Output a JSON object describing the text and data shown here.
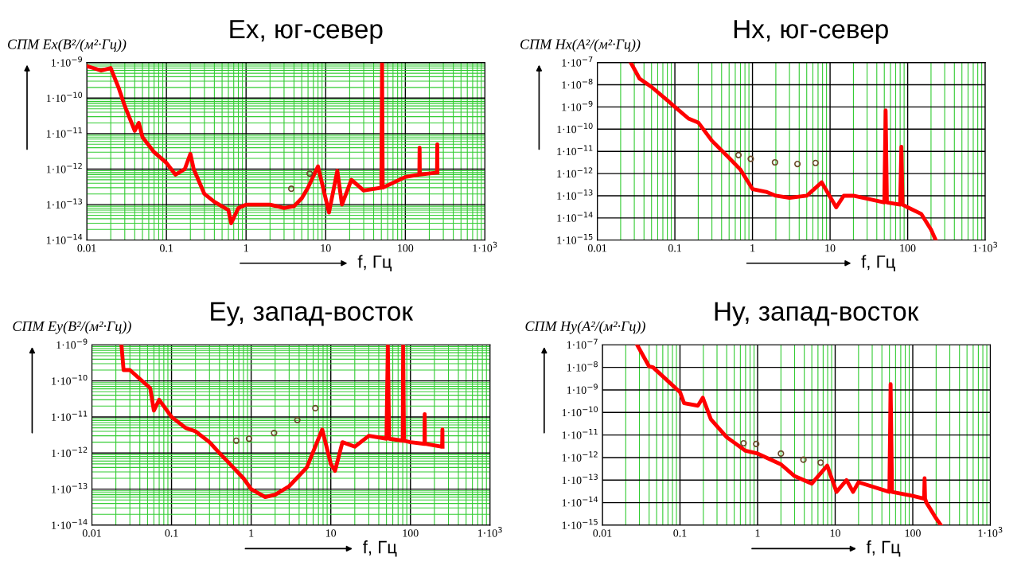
{
  "chart_data": [
    {
      "type": "line",
      "title": "Ex, юг-север",
      "xlabel": "f, Гц",
      "ylabel": "СПМ Ex(В²/(м²·Гц))",
      "log": "xy",
      "grid": true,
      "xlim": [
        0.01,
        1000
      ],
      "ylim": [
        1e-14,
        1e-09
      ],
      "xticks": [
        0.01,
        {
          "value": 0.02,
          "label": null
        },
        {
          "value": 0.03,
          "label": null
        },
        {
          "value": 0.04,
          "label": null
        },
        {
          "value": 0.05,
          "label": null
        },
        {
          "value": 0.06,
          "label": null
        },
        {
          "value": 0.07,
          "label": null
        },
        {
          "value": 0.08,
          "label": null
        },
        {
          "value": 0.09,
          "label": null
        },
        0.1,
        {
          "value": 0.2,
          "label": null
        },
        {
          "value": 0.3,
          "label": null
        },
        {
          "value": 0.4,
          "label": null
        },
        {
          "value": 0.5,
          "label": null
        },
        {
          "value": 0.6,
          "label": null
        },
        {
          "value": 0.7,
          "label": null
        },
        {
          "value": 0.8,
          "label": null
        },
        {
          "value": 0.9,
          "label": null
        },
        1,
        {
          "value": 2,
          "label": null
        },
        {
          "value": 3,
          "label": null
        },
        {
          "value": 4,
          "label": null
        },
        {
          "value": 5,
          "label": null
        },
        {
          "value": 6,
          "label": null
        },
        {
          "value": 7,
          "label": null
        },
        {
          "value": 8,
          "label": null
        },
        {
          "value": 9,
          "label": null
        },
        10,
        {
          "value": 20,
          "label": null
        },
        {
          "value": 30,
          "label": null
        },
        {
          "value": 40,
          "label": null
        },
        {
          "value": 50,
          "label": null
        },
        {
          "value": 60,
          "label": null
        },
        {
          "value": 70,
          "label": null
        },
        {
          "value": 80,
          "label": null
        },
        {
          "value": 90,
          "label": null
        },
        100,
        {
          "value": 200,
          "label": null
        },
        {
          "value": 300,
          "label": null
        },
        {
          "value": 400,
          "label": null
        },
        {
          "value": 500,
          "label": null
        },
        {
          "value": 600,
          "label": null
        },
        {
          "value": 700,
          "label": null
        },
        {
          "value": 800,
          "label": null
        },
        {
          "value": 900,
          "label": null
        },
        {
          "value": 1000,
          "label": "1·10$^{3}$"
        }
      ],
      "yticks": [
        {
          "value": 1e-14,
          "label": "1·10$^{−14}$"
        },
        {
          "value": 2e-14,
          "label": null
        },
        {
          "value": 3e-14,
          "label": null
        },
        {
          "value": 4e-14,
          "label": null
        },
        {
          "value": 5e-14,
          "label": null
        },
        {
          "value": 6e-14,
          "label": null
        },
        {
          "value": 7e-14,
          "label": null
        },
        {
          "value": 8e-14,
          "label": null
        },
        {
          "value": 9e-14,
          "label": null
        },
        {
          "value": 1e-13,
          "label": "1·10$^{−13}$"
        },
        {
          "value": 2e-13,
          "label": null
        },
        {
          "value": 3e-13,
          "label": null
        },
        {
          "value": 4e-13,
          "label": null
        },
        {
          "value": 5e-13,
          "label": null
        },
        {
          "value": 6e-13,
          "label": null
        },
        {
          "value": 7e-13,
          "label": null
        },
        {
          "value": 8e-13,
          "label": null
        },
        {
          "value": 9e-13,
          "label": null
        },
        {
          "value": 1e-12,
          "label": "1·10$^{−12}$"
        },
        {
          "value": 2e-12,
          "label": null
        },
        {
          "value": 3e-12,
          "label": null
        },
        {
          "value": 4e-12,
          "label": null
        },
        {
          "value": 5e-12,
          "label": null
        },
        {
          "value": 6e-12,
          "label": null
        },
        {
          "value": 7e-12,
          "label": null
        },
        {
          "value": 8e-12,
          "label": null
        },
        {
          "value": 9e-12,
          "label": null
        },
        {
          "value": 1e-11,
          "label": "1·10$^{−11}$"
        },
        {
          "value": 2e-11,
          "label": null
        },
        {
          "value": 3e-11,
          "label": null
        },
        {
          "value": 4e-11,
          "label": null
        },
        {
          "value": 5e-11,
          "label": null
        },
        {
          "value": 6e-11,
          "label": null
        },
        {
          "value": 7e-11,
          "label": null
        },
        {
          "value": 8e-11,
          "label": null
        },
        {
          "value": 9e-11,
          "label": null
        },
        {
          "value": 1e-10,
          "label": "1·10$^{−10}$"
        },
        {
          "value": 2e-10,
          "label": null
        },
        {
          "value": 3e-10,
          "label": null
        },
        {
          "value": 4e-10,
          "label": null
        },
        {
          "value": 5e-10,
          "label": null
        },
        {
          "value": 6e-10,
          "label": null
        },
        {
          "value": 7e-10,
          "label": null
        },
        {
          "value": 8e-10,
          "label": null
        },
        {
          "value": 9e-10,
          "label": null
        },
        {
          "value": 1e-09,
          "label": "1·10$^{−9}$"
        }
      ],
      "series": [
        {
          "color": "#ff0000",
          "x": [
            0.01,
            0.015,
            0.02,
            0.025,
            0.03,
            0.04,
            0.045,
            0.05,
            0.07,
            0.1,
            0.13,
            0.17,
            0.2,
            0.22,
            0.3,
            0.4,
            0.6,
            0.65,
            0.8,
            1,
            2,
            3,
            4,
            5,
            6,
            8,
            11,
            14,
            16,
            21,
            30,
            50,
            51,
            52,
            100,
            150,
            151,
            152,
            250,
            252,
            253
          ],
          "values": [
            8e-10,
            6e-10,
            7e-10,
            2e-10,
            6e-11,
            1.2e-11,
            2e-11,
            8e-12,
            3e-12,
            1.5e-12,
            7e-13,
            1e-12,
            2.7e-12,
            1e-12,
            2e-13,
            1.2e-13,
            7e-14,
            3e-14,
            8e-14,
            1e-13,
            1e-13,
            8e-14,
            9e-14,
            1.5e-13,
            3e-13,
            1.2e-12,
            6e-14,
            9e-13,
            1e-13,
            5e-13,
            2.5e-13,
            3e-13,
            1e-09,
            3e-13,
            6e-13,
            7e-13,
            4e-12,
            7e-13,
            8e-13,
            5e-12,
            8e-13
          ]
        },
        {
          "type": "scatter",
          "color": "#6b4a2a",
          "x": [
            3.7,
            6.3
          ],
          "values": [
            2.8e-13,
            7.5e-13
          ]
        }
      ]
    },
    {
      "type": "line",
      "title": "Hx, юг-север",
      "xlabel": "f, Гц",
      "ylabel": "СПМ Hx(А²/(м²·Гц))",
      "log": "xy",
      "grid": true,
      "xlim": [
        0.01,
        1000
      ],
      "ylim": [
        1e-15,
        1e-07
      ],
      "xticks": [
        0.01,
        {
          "value": 0.02,
          "label": null
        },
        {
          "value": 0.03,
          "label": null
        },
        {
          "value": 0.04,
          "label": null
        },
        {
          "value": 0.05,
          "label": null
        },
        {
          "value": 0.06,
          "label": null
        },
        {
          "value": 0.07,
          "label": null
        },
        {
          "value": 0.08,
          "label": null
        },
        {
          "value": 0.09,
          "label": null
        },
        0.1,
        {
          "value": 0.2,
          "label": null
        },
        {
          "value": 0.3,
          "label": null
        },
        {
          "value": 0.4,
          "label": null
        },
        {
          "value": 0.5,
          "label": null
        },
        {
          "value": 0.6,
          "label": null
        },
        {
          "value": 0.7,
          "label": null
        },
        {
          "value": 0.8,
          "label": null
        },
        {
          "value": 0.9,
          "label": null
        },
        1,
        {
          "value": 2,
          "label": null
        },
        {
          "value": 3,
          "label": null
        },
        {
          "value": 4,
          "label": null
        },
        {
          "value": 5,
          "label": null
        },
        {
          "value": 6,
          "label": null
        },
        {
          "value": 7,
          "label": null
        },
        {
          "value": 8,
          "label": null
        },
        {
          "value": 9,
          "label": null
        },
        10,
        {
          "value": 20,
          "label": null
        },
        {
          "value": 30,
          "label": null
        },
        {
          "value": 40,
          "label": null
        },
        {
          "value": 50,
          "label": null
        },
        {
          "value": 60,
          "label": null
        },
        {
          "value": 70,
          "label": null
        },
        {
          "value": 80,
          "label": null
        },
        {
          "value": 90,
          "label": null
        },
        100,
        {
          "value": 200,
          "label": null
        },
        {
          "value": 300,
          "label": null
        },
        {
          "value": 400,
          "label": null
        },
        {
          "value": 500,
          "label": null
        },
        {
          "value": 600,
          "label": null
        },
        {
          "value": 700,
          "label": null
        },
        {
          "value": 800,
          "label": null
        },
        {
          "value": 900,
          "label": null
        },
        {
          "value": 1000,
          "label": "1·10$^{3}$"
        }
      ],
      "yticks": [
        {
          "value": 1e-15,
          "label": "1·10$^{−15}$"
        },
        {
          "value": 1e-14,
          "label": "1·10$^{−14}$"
        },
        {
          "value": 1e-13,
          "label": "1·10$^{−13}$"
        },
        {
          "value": 1e-12,
          "label": "1·10$^{−12}$"
        },
        {
          "value": 1e-11,
          "label": "1·10$^{−11}$"
        },
        {
          "value": 1e-10,
          "label": "1·10$^{−10}$"
        },
        {
          "value": 1e-09,
          "label": "1·10$^{−9}$"
        },
        {
          "value": 1e-08,
          "label": "1·10$^{−8}$"
        },
        {
          "value": 1e-07,
          "label": "1·10$^{−7}$"
        }
      ],
      "series": [
        {
          "color": "#ff0000",
          "x": [
            0.027,
            0.035,
            0.05,
            0.08,
            0.1,
            0.15,
            0.2,
            0.3,
            0.5,
            0.7,
            1,
            1.5,
            2,
            3,
            5,
            7.8,
            12,
            15,
            20,
            50,
            52,
            54,
            80,
            83,
            86,
            100,
            150,
            200,
            230
          ],
          "values": [
            1e-07,
            1.9e-08,
            8e-09,
            2e-09,
            1e-09,
            3e-10,
            2e-10,
            3e-11,
            5e-12,
            1.5e-12,
            2e-13,
            1.5e-13,
            1e-13,
            8e-14,
            1e-13,
            4e-13,
            3e-14,
            1e-13,
            1e-13,
            5e-14,
            7e-10,
            5e-14,
            4e-14,
            1.6e-11,
            4e-14,
            3e-14,
            1.5e-14,
            3e-15,
            1e-15
          ]
        },
        {
          "type": "scatter",
          "color": "#6b4a2a",
          "x": [
            0.66,
            0.95,
            1.95,
            3.8,
            6.5
          ],
          "values": [
            6.8e-12,
            4.6e-12,
            3.2e-12,
            2.7e-12,
            3e-12
          ]
        }
      ]
    },
    {
      "type": "line",
      "title": "Ey, запад-восток",
      "xlabel": "f, Гц",
      "ylabel": "СПМ Ey(В²/(м²·Гц))",
      "log": "xy",
      "grid": true,
      "xlim": [
        0.01,
        1000
      ],
      "ylim": [
        1e-14,
        1e-09
      ],
      "xticks": [
        0.01,
        {
          "value": 0.02,
          "label": null
        },
        {
          "value": 0.03,
          "label": null
        },
        {
          "value": 0.04,
          "label": null
        },
        {
          "value": 0.05,
          "label": null
        },
        {
          "value": 0.06,
          "label": null
        },
        {
          "value": 0.07,
          "label": null
        },
        {
          "value": 0.08,
          "label": null
        },
        {
          "value": 0.09,
          "label": null
        },
        0.1,
        {
          "value": 0.2,
          "label": null
        },
        {
          "value": 0.3,
          "label": null
        },
        {
          "value": 0.4,
          "label": null
        },
        {
          "value": 0.5,
          "label": null
        },
        {
          "value": 0.6,
          "label": null
        },
        {
          "value": 0.7,
          "label": null
        },
        {
          "value": 0.8,
          "label": null
        },
        {
          "value": 0.9,
          "label": null
        },
        1,
        {
          "value": 2,
          "label": null
        },
        {
          "value": 3,
          "label": null
        },
        {
          "value": 4,
          "label": null
        },
        {
          "value": 5,
          "label": null
        },
        {
          "value": 6,
          "label": null
        },
        {
          "value": 7,
          "label": null
        },
        {
          "value": 8,
          "label": null
        },
        {
          "value": 9,
          "label": null
        },
        10,
        {
          "value": 20,
          "label": null
        },
        {
          "value": 30,
          "label": null
        },
        {
          "value": 40,
          "label": null
        },
        {
          "value": 50,
          "label": null
        },
        {
          "value": 60,
          "label": null
        },
        {
          "value": 70,
          "label": null
        },
        {
          "value": 80,
          "label": null
        },
        {
          "value": 90,
          "label": null
        },
        100,
        {
          "value": 200,
          "label": null
        },
        {
          "value": 300,
          "label": null
        },
        {
          "value": 400,
          "label": null
        },
        {
          "value": 500,
          "label": null
        },
        {
          "value": 600,
          "label": null
        },
        {
          "value": 700,
          "label": null
        },
        {
          "value": 800,
          "label": null
        },
        {
          "value": 900,
          "label": null
        },
        {
          "value": 1000,
          "label": "1·10$^{3}$"
        }
      ],
      "yticks": [
        {
          "value": 1e-14,
          "label": "1·10$^{−14}$"
        },
        {
          "value": 2e-14,
          "label": null
        },
        {
          "value": 3e-14,
          "label": null
        },
        {
          "value": 4e-14,
          "label": null
        },
        {
          "value": 5e-14,
          "label": null
        },
        {
          "value": 6e-14,
          "label": null
        },
        {
          "value": 7e-14,
          "label": null
        },
        {
          "value": 8e-14,
          "label": null
        },
        {
          "value": 9e-14,
          "label": null
        },
        {
          "value": 1e-13,
          "label": "1·10$^{−13}$"
        },
        {
          "value": 2e-13,
          "label": null
        },
        {
          "value": 3e-13,
          "label": null
        },
        {
          "value": 4e-13,
          "label": null
        },
        {
          "value": 5e-13,
          "label": null
        },
        {
          "value": 6e-13,
          "label": null
        },
        {
          "value": 7e-13,
          "label": null
        },
        {
          "value": 8e-13,
          "label": null
        },
        {
          "value": 9e-13,
          "label": null
        },
        {
          "value": 1e-12,
          "label": "1·10$^{−12}$"
        },
        {
          "value": 2e-12,
          "label": null
        },
        {
          "value": 3e-12,
          "label": null
        },
        {
          "value": 4e-12,
          "label": null
        },
        {
          "value": 5e-12,
          "label": null
        },
        {
          "value": 6e-12,
          "label": null
        },
        {
          "value": 7e-12,
          "label": null
        },
        {
          "value": 8e-12,
          "label": null
        },
        {
          "value": 9e-12,
          "label": null
        },
        {
          "value": 1e-11,
          "label": "1·10$^{−11}$"
        },
        {
          "value": 2e-11,
          "label": null
        },
        {
          "value": 3e-11,
          "label": null
        },
        {
          "value": 4e-11,
          "label": null
        },
        {
          "value": 5e-11,
          "label": null
        },
        {
          "value": 6e-11,
          "label": null
        },
        {
          "value": 7e-11,
          "label": null
        },
        {
          "value": 8e-11,
          "label": null
        },
        {
          "value": 9e-11,
          "label": null
        },
        {
          "value": 1e-10,
          "label": "1·10$^{−10}$"
        },
        {
          "value": 2e-10,
          "label": null
        },
        {
          "value": 3e-10,
          "label": null
        },
        {
          "value": 4e-10,
          "label": null
        },
        {
          "value": 5e-10,
          "label": null
        },
        {
          "value": 6e-10,
          "label": null
        },
        {
          "value": 7e-10,
          "label": null
        },
        {
          "value": 8e-10,
          "label": null
        },
        {
          "value": 9e-10,
          "label": null
        },
        {
          "value": 1e-09,
          "label": "1·10$^{−9}$"
        }
      ],
      "series": [
        {
          "color": "#ff0000",
          "x": [
            0.0235,
            0.025,
            0.03,
            0.054,
            0.06,
            0.07,
            0.1,
            0.15,
            0.2,
            0.3,
            0.4,
            0.5,
            0.8,
            1,
            1.5,
            2,
            3,
            5,
            7.8,
            10,
            11.3,
            14,
            20,
            30,
            50,
            52,
            54,
            80,
            81,
            83,
            100,
            150,
            151,
            152,
            250,
            252,
            253
          ],
          "values": [
            1e-09,
            2e-10,
            2e-10,
            6.3e-11,
            1.5e-11,
            3e-11,
            1e-11,
            5e-12,
            4e-12,
            2e-12,
            1e-12,
            6e-13,
            2e-13,
            1e-13,
            6e-14,
            7e-14,
            1.2e-13,
            4e-13,
            4.5e-12,
            5e-13,
            3.2e-13,
            2e-12,
            1.5e-12,
            3e-12,
            2.5e-12,
            1e-09,
            2.5e-12,
            2.2e-12,
            1e-09,
            2.2e-12,
            2e-12,
            1.8e-12,
            1.2e-11,
            1.8e-12,
            1.5e-12,
            4.5e-12,
            1.5e-12
          ]
        },
        {
          "type": "scatter",
          "color": "#6b4a2a",
          "x": [
            0.65,
            0.94,
            1.94,
            3.8,
            6.4
          ],
          "values": [
            2.2e-12,
            2.5e-12,
            3.6e-12,
            8.2e-12,
            1.75e-11
          ]
        }
      ]
    },
    {
      "type": "line",
      "title": "Hy, запад-восток",
      "xlabel": "f, Гц",
      "ylabel": "СПМ Hy(А²/(м²·Гц))",
      "log": "xy",
      "grid": true,
      "xlim": [
        0.01,
        1000
      ],
      "ylim": [
        1e-15,
        1e-07
      ],
      "xticks": [
        0.01,
        {
          "value": 0.02,
          "label": null
        },
        {
          "value": 0.03,
          "label": null
        },
        {
          "value": 0.04,
          "label": null
        },
        {
          "value": 0.05,
          "label": null
        },
        {
          "value": 0.06,
          "label": null
        },
        {
          "value": 0.07,
          "label": null
        },
        {
          "value": 0.08,
          "label": null
        },
        {
          "value": 0.09,
          "label": null
        },
        0.1,
        {
          "value": 0.2,
          "label": null
        },
        {
          "value": 0.3,
          "label": null
        },
        {
          "value": 0.4,
          "label": null
        },
        {
          "value": 0.5,
          "label": null
        },
        {
          "value": 0.6,
          "label": null
        },
        {
          "value": 0.7,
          "label": null
        },
        {
          "value": 0.8,
          "label": null
        },
        {
          "value": 0.9,
          "label": null
        },
        1,
        {
          "value": 2,
          "label": null
        },
        {
          "value": 3,
          "label": null
        },
        {
          "value": 4,
          "label": null
        },
        {
          "value": 5,
          "label": null
        },
        {
          "value": 6,
          "label": null
        },
        {
          "value": 7,
          "label": null
        },
        {
          "value": 8,
          "label": null
        },
        {
          "value": 9,
          "label": null
        },
        10,
        {
          "value": 20,
          "label": null
        },
        {
          "value": 30,
          "label": null
        },
        {
          "value": 40,
          "label": null
        },
        {
          "value": 50,
          "label": null
        },
        {
          "value": 60,
          "label": null
        },
        {
          "value": 70,
          "label": null
        },
        {
          "value": 80,
          "label": null
        },
        {
          "value": 90,
          "label": null
        },
        100,
        {
          "value": 200,
          "label": null
        },
        {
          "value": 300,
          "label": null
        },
        {
          "value": 400,
          "label": null
        },
        {
          "value": 500,
          "label": null
        },
        {
          "value": 600,
          "label": null
        },
        {
          "value": 700,
          "label": null
        },
        {
          "value": 800,
          "label": null
        },
        {
          "value": 900,
          "label": null
        },
        {
          "value": 1000,
          "label": "1·10$^{3}$"
        }
      ],
      "yticks": [
        {
          "value": 1e-15,
          "label": "1·10$^{−15}$"
        },
        {
          "value": 1e-14,
          "label": "1·10$^{−14}$"
        },
        {
          "value": 1e-13,
          "label": "1·10$^{−13}$"
        },
        {
          "value": 1e-12,
          "label": "1·10$^{−12}$"
        },
        {
          "value": 1e-11,
          "label": "1·10$^{−11}$"
        },
        {
          "value": 1e-10,
          "label": "1·10$^{−10}$"
        },
        {
          "value": 1e-09,
          "label": "1·10$^{−9}$"
        },
        {
          "value": 1e-08,
          "label": "1·10$^{−8}$"
        },
        {
          "value": 1e-07,
          "label": "1·10$^{−7}$"
        }
      ],
      "series": [
        {
          "color": "#ff0000",
          "x": [
            0.028,
            0.04,
            0.045,
            0.06,
            0.1,
            0.113,
            0.17,
            0.197,
            0.25,
            0.4,
            0.7,
            1,
            2,
            3,
            5,
            7.9,
            10.4,
            14,
            17,
            20,
            50,
            51.8,
            54,
            100,
            140,
            142,
            144,
            150,
            200,
            230
          ],
          "values": [
            1e-07,
            1.1e-08,
            1e-08,
            4e-09,
            8e-10,
            2.6e-10,
            2e-10,
            4.5e-10,
            5e-11,
            8e-12,
            2e-12,
            1.5e-12,
            5e-13,
            1.5e-13,
            7e-14,
            4.4e-13,
            3e-14,
            1e-13,
            3e-14,
            8e-14,
            3e-14,
            1.8e-09,
            3e-14,
            2e-14,
            1.5e-14,
            1.2e-13,
            1.5e-14,
            1e-14,
            2e-15,
            1e-15
          ]
        },
        {
          "type": "scatter",
          "color": "#6b4a2a",
          "x": [
            0.66,
            0.96,
            2.0,
            3.9,
            6.5
          ],
          "values": [
            4.3e-12,
            4e-12,
            1.5e-12,
            8e-13,
            6e-13
          ]
        }
      ]
    }
  ]
}
